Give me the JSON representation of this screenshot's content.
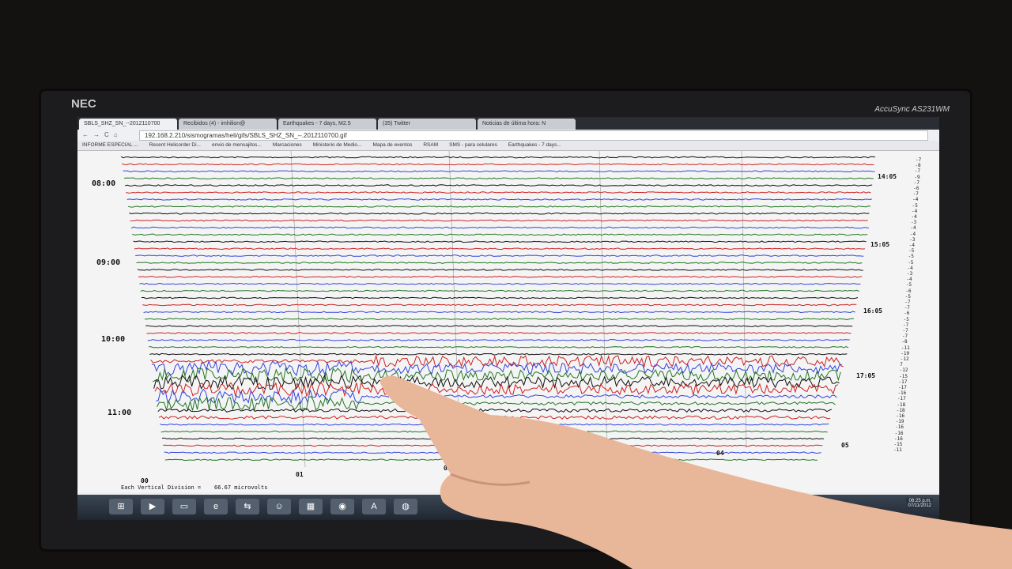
{
  "monitor": {
    "brand": "NEC",
    "model": "AccuSync AS231WM"
  },
  "browser": {
    "tabs": [
      {
        "label": "SBLS_SHZ_SN_--2012110700",
        "active": true
      },
      {
        "label": "Recibidos (4) - imhilion@"
      },
      {
        "label": "Earthquakes - 7 days, M2.5"
      },
      {
        "label": "(35) Twitter"
      },
      {
        "label": "Noticias de última hora: N"
      }
    ],
    "url": "192.168.2.210/sismogramas/heli/gifs/SBLS_SHZ_SN_--.2012110700.gif",
    "bookmarks": [
      "INFORME ESPECIAL ...",
      "Recent Helicorder Di...",
      "envio de mensajitos...",
      "Marcaciones",
      "Ministerio de Medio...",
      "Mapa de eventos",
      "RSAM",
      "SMS - para celulares",
      "Earthquakes - 7 days..."
    ]
  },
  "seismogram": {
    "left_times": [
      "08:00",
      "09:00",
      "10:00",
      "11:00"
    ],
    "right_times": [
      "14:05",
      "15:05",
      "16:05",
      "17:05"
    ],
    "bottom_ticks": [
      "00",
      "01",
      "02",
      "04",
      "05"
    ],
    "footer": "Each Vertical Division =    66.67 microvolts",
    "right_values": [
      "-7",
      "-8",
      "-7",
      "-9",
      "-7",
      "-6",
      "-7",
      "-4",
      "-5",
      "-4",
      "-4",
      "-3",
      "-4",
      "-4",
      "-3",
      "-4",
      "-5",
      "-5",
      "-5",
      "-4",
      "-3",
      "-4",
      "-5",
      "-6",
      "-5",
      "-7",
      "-7",
      "-6",
      "-5",
      "-7",
      "-7",
      "-7",
      "-8",
      "-11",
      "-10",
      "-12",
      "7",
      "-12",
      "-15",
      "-17",
      "-17",
      "-16",
      "-17",
      "-18",
      "-18",
      "-16",
      "-19",
      "-16",
      "-16",
      "-16",
      "-15",
      "-11"
    ],
    "trace_colors": [
      "#111111",
      "#cc2222",
      "#3344dd",
      "#227722"
    ]
  },
  "taskbar": {
    "clock_time": "06:25 p.m.",
    "clock_date": "07/11/2012",
    "icons": [
      "start-orb",
      "media-player",
      "folder",
      "internet-explorer",
      "network",
      "contacts",
      "presentation",
      "chrome",
      "acrobat",
      "google-earth"
    ]
  }
}
